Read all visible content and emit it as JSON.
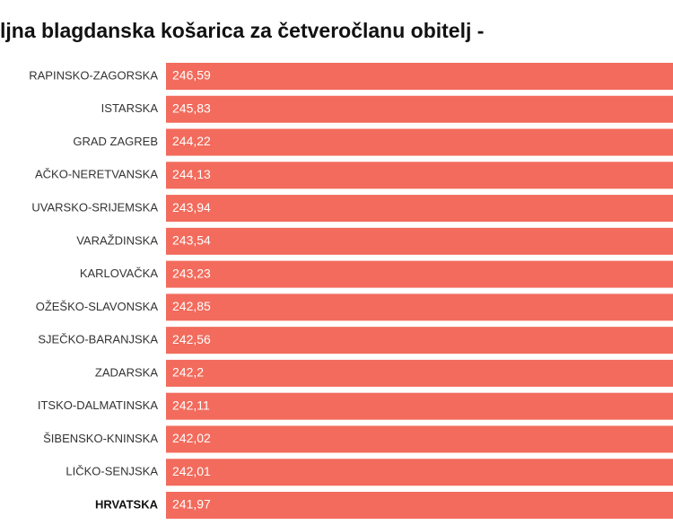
{
  "chart_data": {
    "type": "bar",
    "orientation": "horizontal",
    "title": "ljna blagdanska košarica za četveročlanu obitelj -",
    "categories": [
      "RAPINSKO-ZAGORSKA",
      "ISTARSKA",
      "GRAD ZAGREB",
      "AČKO-NERETVANSKA",
      "UVARSKO-SRIJEMSKA",
      "VARAŽDINSKA",
      "KARLOVAČKA",
      "OŽEŠKO-SLAVONSKA",
      "SJEČKO-BARANJSKA",
      "ZADARSKA",
      "ITSKO-DALMATINSKA",
      "ŠIBENSKO-KNINSKA",
      "LIČKO-SENJSKA",
      "HRVATSKA"
    ],
    "values": [
      246.59,
      245.83,
      244.22,
      244.13,
      243.94,
      243.54,
      243.23,
      242.85,
      242.56,
      242.2,
      242.11,
      242.02,
      242.01,
      241.97
    ],
    "value_labels": [
      "246,59",
      "245,83",
      "244,22",
      "244,13",
      "243,94",
      "243,54",
      "243,23",
      "242,85",
      "242,56",
      "242,2",
      "242,11",
      "242,02",
      "242,01",
      "241,97"
    ],
    "color": "#f26b5c"
  }
}
